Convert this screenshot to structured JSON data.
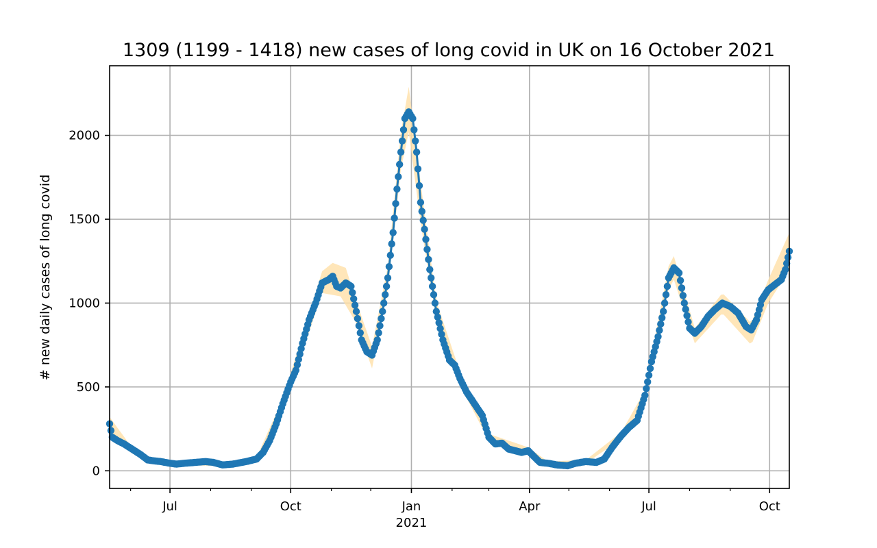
{
  "chart_data": {
    "type": "line",
    "title": "1309 (1199 - 1418) new cases of long covid in UK on 16 October 2021",
    "xlabel": "",
    "ylabel": "# new daily cases of long covid",
    "x_range": [
      "2020-05-16",
      "2021-10-16"
    ],
    "ylim": [
      -105,
      2415
    ],
    "grid": true,
    "legend": "none",
    "colors": {
      "line": "#1f77b4",
      "band": "#ffe0a8"
    },
    "y_ticks": [
      0,
      500,
      1000,
      1500,
      2000
    ],
    "x_ticks": [
      {
        "date": "2020-07-01",
        "label": "Jul",
        "sublabel": ""
      },
      {
        "date": "2020-10-01",
        "label": "Oct",
        "sublabel": ""
      },
      {
        "date": "2021-01-01",
        "label": "Jan",
        "sublabel": "2021"
      },
      {
        "date": "2021-04-01",
        "label": "Apr",
        "sublabel": ""
      },
      {
        "date": "2021-07-01",
        "label": "Jul",
        "sublabel": ""
      },
      {
        "date": "2021-10-01",
        "label": "Oct",
        "sublabel": ""
      }
    ],
    "series": [
      {
        "key": "central_estimate",
        "points": [
          [
            "2020-05-16",
            280
          ],
          [
            "2020-05-18",
            200
          ],
          [
            "2020-05-22",
            180
          ],
          [
            "2020-05-27",
            160
          ],
          [
            "2020-06-02",
            130
          ],
          [
            "2020-06-08",
            100
          ],
          [
            "2020-06-14",
            65
          ],
          [
            "2020-06-18",
            60
          ],
          [
            "2020-06-24",
            55
          ],
          [
            "2020-07-01",
            45
          ],
          [
            "2020-07-06",
            40
          ],
          [
            "2020-07-12",
            45
          ],
          [
            "2020-07-20",
            50
          ],
          [
            "2020-07-28",
            55
          ],
          [
            "2020-08-03",
            50
          ],
          [
            "2020-08-10",
            35
          ],
          [
            "2020-08-18",
            40
          ],
          [
            "2020-08-28",
            55
          ],
          [
            "2020-09-05",
            70
          ],
          [
            "2020-09-10",
            110
          ],
          [
            "2020-09-15",
            180
          ],
          [
            "2020-09-20",
            280
          ],
          [
            "2020-09-25",
            400
          ],
          [
            "2020-10-01",
            530
          ],
          [
            "2020-10-05",
            600
          ],
          [
            "2020-10-10",
            760
          ],
          [
            "2020-10-15",
            900
          ],
          [
            "2020-10-20",
            1000
          ],
          [
            "2020-10-25",
            1120
          ],
          [
            "2020-10-30",
            1140
          ],
          [
            "2020-11-02",
            1160
          ],
          [
            "2020-11-05",
            1100
          ],
          [
            "2020-11-08",
            1090
          ],
          [
            "2020-11-12",
            1120
          ],
          [
            "2020-11-16",
            1100
          ],
          [
            "2020-11-20",
            950
          ],
          [
            "2020-11-24",
            780
          ],
          [
            "2020-11-28",
            710
          ],
          [
            "2020-12-02",
            690
          ],
          [
            "2020-12-06",
            780
          ],
          [
            "2020-12-10",
            950
          ],
          [
            "2020-12-14",
            1150
          ],
          [
            "2020-12-18",
            1420
          ],
          [
            "2020-12-21",
            1680
          ],
          [
            "2020-12-24",
            1900
          ],
          [
            "2020-12-27",
            2100
          ],
          [
            "2020-12-30",
            2140
          ],
          [
            "2021-01-02",
            2100
          ],
          [
            "2021-01-05",
            1900
          ],
          [
            "2021-01-08",
            1600
          ],
          [
            "2021-01-11",
            1440
          ],
          [
            "2021-01-15",
            1200
          ],
          [
            "2021-01-20",
            950
          ],
          [
            "2021-01-25",
            780
          ],
          [
            "2021-01-30",
            660
          ],
          [
            "2021-02-03",
            630
          ],
          [
            "2021-02-07",
            550
          ],
          [
            "2021-02-12",
            470
          ],
          [
            "2021-02-18",
            400
          ],
          [
            "2021-02-24",
            330
          ],
          [
            "2021-03-01",
            200
          ],
          [
            "2021-03-06",
            160
          ],
          [
            "2021-03-11",
            165
          ],
          [
            "2021-03-16",
            130
          ],
          [
            "2021-03-21",
            120
          ],
          [
            "2021-03-26",
            110
          ],
          [
            "2021-03-31",
            120
          ],
          [
            "2021-04-05",
            80
          ],
          [
            "2021-04-09",
            50
          ],
          [
            "2021-04-15",
            45
          ],
          [
            "2021-04-22",
            35
          ],
          [
            "2021-04-30",
            30
          ],
          [
            "2021-05-06",
            45
          ],
          [
            "2021-05-14",
            55
          ],
          [
            "2021-05-22",
            50
          ],
          [
            "2021-05-28",
            70
          ],
          [
            "2021-06-03",
            140
          ],
          [
            "2021-06-10",
            210
          ],
          [
            "2021-06-16",
            260
          ],
          [
            "2021-06-22",
            300
          ],
          [
            "2021-06-28",
            450
          ],
          [
            "2021-07-03",
            650
          ],
          [
            "2021-07-08",
            800
          ],
          [
            "2021-07-12",
            950
          ],
          [
            "2021-07-16",
            1150
          ],
          [
            "2021-07-20",
            1210
          ],
          [
            "2021-07-24",
            1180
          ],
          [
            "2021-07-28",
            1000
          ],
          [
            "2021-08-01",
            850
          ],
          [
            "2021-08-05",
            820
          ],
          [
            "2021-08-10",
            860
          ],
          [
            "2021-08-15",
            920
          ],
          [
            "2021-08-20",
            960
          ],
          [
            "2021-08-26",
            1000
          ],
          [
            "2021-09-01",
            980
          ],
          [
            "2021-09-07",
            940
          ],
          [
            "2021-09-13",
            860
          ],
          [
            "2021-09-17",
            840
          ],
          [
            "2021-09-21",
            900
          ],
          [
            "2021-09-25",
            1020
          ],
          [
            "2021-09-30",
            1080
          ],
          [
            "2021-10-05",
            1110
          ],
          [
            "2021-10-10",
            1140
          ],
          [
            "2021-10-13",
            1200
          ],
          [
            "2021-10-16",
            1309
          ]
        ],
        "lower": [
          [
            "2020-05-16",
            240
          ],
          [
            "2020-06-01",
            110
          ],
          [
            "2020-06-16",
            45
          ],
          [
            "2020-07-01",
            35
          ],
          [
            "2020-08-10",
            28
          ],
          [
            "2020-09-05",
            60
          ],
          [
            "2020-09-25",
            370
          ],
          [
            "2020-10-10",
            710
          ],
          [
            "2020-10-25",
            1060
          ],
          [
            "2020-11-08",
            1040
          ],
          [
            "2020-11-20",
            880
          ],
          [
            "2020-12-02",
            610
          ],
          [
            "2020-12-14",
            1080
          ],
          [
            "2020-12-24",
            1800
          ],
          [
            "2020-12-30",
            2020
          ],
          [
            "2021-01-08",
            1480
          ],
          [
            "2021-01-20",
            900
          ],
          [
            "2021-02-07",
            510
          ],
          [
            "2021-03-01",
            180
          ],
          [
            "2021-03-31",
            100
          ],
          [
            "2021-04-15",
            35
          ],
          [
            "2021-05-14",
            45
          ],
          [
            "2021-06-10",
            190
          ],
          [
            "2021-06-28",
            420
          ],
          [
            "2021-07-16",
            1080
          ],
          [
            "2021-07-20",
            1140
          ],
          [
            "2021-08-05",
            760
          ],
          [
            "2021-08-26",
            940
          ],
          [
            "2021-09-17",
            750
          ],
          [
            "2021-09-30",
            1000
          ],
          [
            "2021-10-16",
            1199
          ]
        ],
        "upper": [
          [
            "2020-05-16",
            320
          ],
          [
            "2020-06-01",
            150
          ],
          [
            "2020-06-16",
            75
          ],
          [
            "2020-07-01",
            55
          ],
          [
            "2020-08-10",
            42
          ],
          [
            "2020-09-05",
            80
          ],
          [
            "2020-09-25",
            430
          ],
          [
            "2020-10-10",
            810
          ],
          [
            "2020-10-25",
            1190
          ],
          [
            "2020-11-02",
            1240
          ],
          [
            "2020-11-12",
            1210
          ],
          [
            "2020-11-20",
            1010
          ],
          [
            "2020-12-02",
            740
          ],
          [
            "2020-12-14",
            1220
          ],
          [
            "2020-12-24",
            2020
          ],
          [
            "2020-12-30",
            2290
          ],
          [
            "2021-01-08",
            1720
          ],
          [
            "2021-01-20",
            1010
          ],
          [
            "2021-02-07",
            590
          ],
          [
            "2021-03-01",
            220
          ],
          [
            "2021-03-31",
            140
          ],
          [
            "2021-04-15",
            55
          ],
          [
            "2021-05-14",
            65
          ],
          [
            "2021-06-10",
            230
          ],
          [
            "2021-06-28",
            480
          ],
          [
            "2021-07-16",
            1220
          ],
          [
            "2021-07-20",
            1280
          ],
          [
            "2021-08-05",
            850
          ],
          [
            "2021-08-26",
            1060
          ],
          [
            "2021-09-17",
            880
          ],
          [
            "2021-09-30",
            1140
          ],
          [
            "2021-10-16",
            1418
          ]
        ]
      }
    ]
  }
}
